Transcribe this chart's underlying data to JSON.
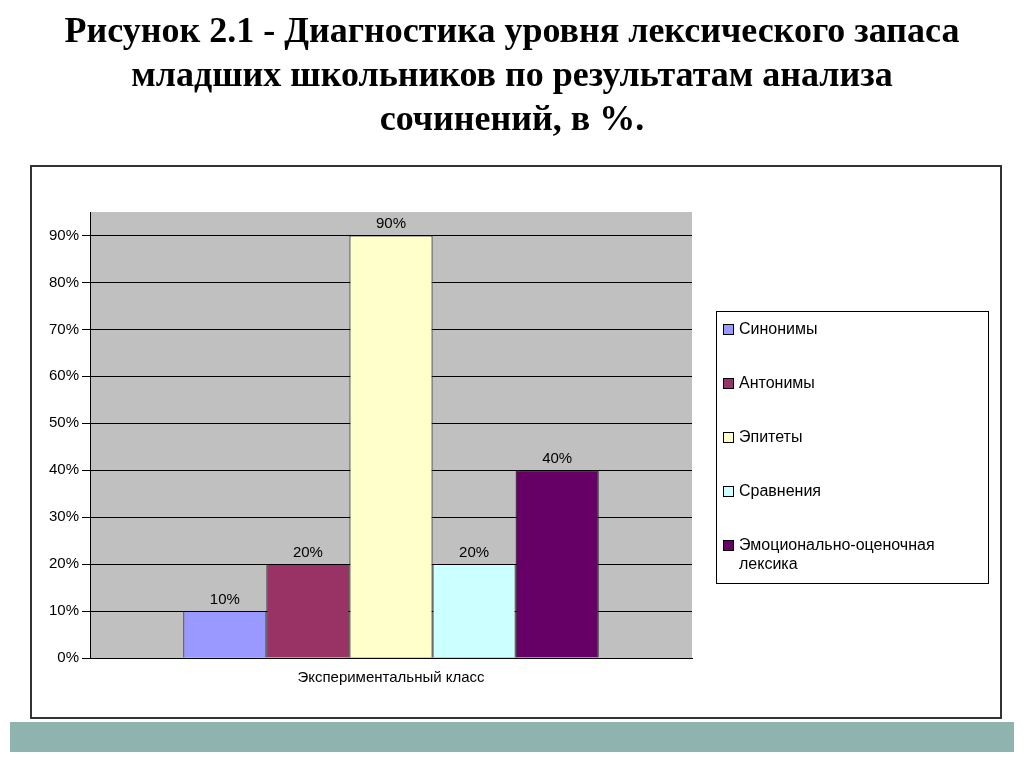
{
  "chart_data": {
    "type": "bar",
    "title": "Рисунок 2.1 - Диагностика уровня лексического запаса младших школьников по результатам анализа сочинений, в %.",
    "categories": [
      "Экспериментальный класс"
    ],
    "series": [
      {
        "name": "Синонимы",
        "color": "#9999ff",
        "values": [
          10
        ],
        "value_labels": [
          "10%"
        ]
      },
      {
        "name": "Антонимы",
        "color": "#993366",
        "values": [
          20
        ],
        "value_labels": [
          "20%"
        ]
      },
      {
        "name": "Эпитеты",
        "color": "#ffffcc",
        "values": [
          90
        ],
        "value_labels": [
          "90%"
        ]
      },
      {
        "name": "Сравнения",
        "color": "#ccffff",
        "values": [
          20
        ],
        "value_labels": [
          "20%"
        ]
      },
      {
        "name": "Эмоционально-оценочная лексика",
        "color": "#660066",
        "values": [
          40
        ],
        "value_labels": [
          "40%"
        ]
      }
    ],
    "ylim": [
      0,
      95
    ],
    "yticks": [
      {
        "value": 0,
        "label": "0%"
      },
      {
        "value": 10,
        "label": "10%"
      },
      {
        "value": 20,
        "label": "20%"
      },
      {
        "value": 30,
        "label": "30%"
      },
      {
        "value": 40,
        "label": "40%"
      },
      {
        "value": 50,
        "label": "50%"
      },
      {
        "value": 60,
        "label": "60%"
      },
      {
        "value": 70,
        "label": "70%"
      },
      {
        "value": 80,
        "label": "80%"
      },
      {
        "value": 90,
        "label": "90%"
      }
    ],
    "grid": "y",
    "legend": "right"
  }
}
